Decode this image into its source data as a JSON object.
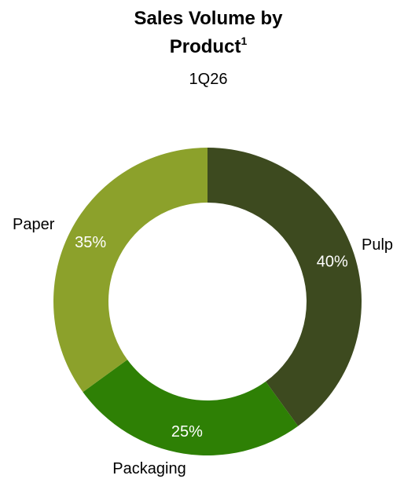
{
  "chart_data": {
    "type": "pie",
    "variant": "donut",
    "title": "Sales Volume by",
    "title_line2": "Product",
    "title_superscript": "1",
    "subtitle": "1Q26",
    "categories": [
      "Pulp",
      "Packaging",
      "Paper"
    ],
    "values": [
      40,
      25,
      35
    ],
    "value_labels": [
      "40%",
      "25%",
      "35%"
    ],
    "colors": [
      "#3d4a1f",
      "#2e8005",
      "#8ca12b"
    ],
    "legend": "none"
  }
}
